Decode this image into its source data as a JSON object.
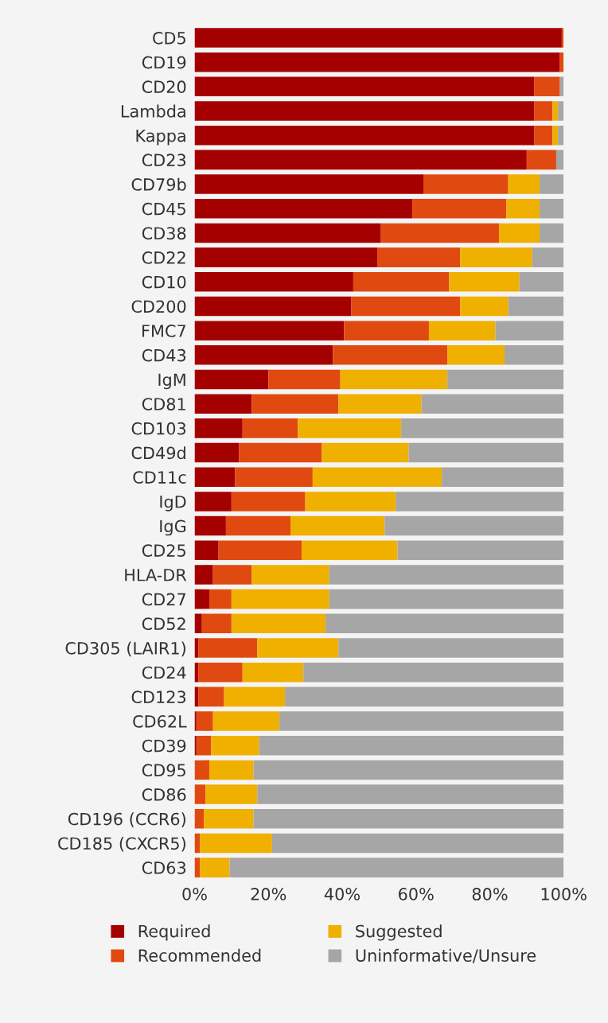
{
  "chart_data": {
    "type": "bar",
    "orientation": "horizontal",
    "stacked": true,
    "categories": [
      "CD5",
      "CD19",
      "CD20",
      "Lambda",
      "Kappa",
      "CD23",
      "CD79b",
      "CD45",
      "CD38",
      "CD22",
      "CD10",
      "CD200",
      "FMC7",
      "CD43",
      "IgM",
      "CD81",
      "CD103",
      "CD49d",
      "CD11c",
      "IgD",
      "IgG",
      "CD25",
      "HLA-DR",
      "CD27",
      "CD52",
      "CD305 (LAIR1)",
      "CD24",
      "CD123",
      "CD62L",
      "CD39",
      "CD95",
      "CD86",
      "CD196 (CCR6)",
      "CD185 (CXCR5)",
      "CD63"
    ],
    "series": [
      {
        "name": "Required",
        "color": "#a50000",
        "values": [
          99.5,
          99,
          92,
          92,
          92,
          90,
          62,
          59,
          50.5,
          49.5,
          43,
          42.5,
          40.5,
          37.5,
          20,
          15.5,
          13,
          12,
          11,
          10,
          8.5,
          6.5,
          5,
          4,
          2,
          1,
          1,
          1,
          0.5,
          0.5,
          0,
          0,
          0,
          0,
          0
        ]
      },
      {
        "name": "Recommended",
        "color": "#e04a10",
        "values": [
          0.5,
          1,
          7,
          5,
          5,
          8,
          23,
          25.5,
          32,
          22.5,
          26,
          29.5,
          23,
          31,
          19.5,
          23.5,
          15,
          22.5,
          21,
          20,
          17.5,
          22.5,
          10.5,
          6,
          8,
          16,
          12,
          7,
          4.5,
          4,
          4,
          3,
          2.5,
          1.5,
          1.5
        ]
      },
      {
        "name": "Suggested",
        "color": "#f0b000",
        "values": [
          0,
          0,
          0,
          1.5,
          1.5,
          0,
          8.5,
          9,
          11,
          19.5,
          19,
          13,
          18,
          15.5,
          29,
          22.5,
          28,
          23.5,
          35,
          24.5,
          25.5,
          26,
          21,
          26.5,
          25.5,
          22,
          16.5,
          16.5,
          18,
          13,
          12,
          14,
          13.5,
          19.5,
          8
        ]
      },
      {
        "name": "Uninformative/Unsure",
        "color": "#a6a6a6",
        "values": [
          0,
          0,
          1,
          1.5,
          1.5,
          2,
          6.5,
          6.5,
          6.5,
          8.5,
          12,
          15,
          18.5,
          16,
          31.5,
          38.5,
          44,
          42,
          33,
          45.5,
          48.5,
          45,
          63.5,
          63.5,
          64.5,
          61,
          70.5,
          75.5,
          77,
          82.5,
          84,
          83,
          84,
          79,
          90.5
        ]
      }
    ],
    "xlim": [
      0,
      100
    ],
    "xticks": [
      {
        "value": 0,
        "label": "0%"
      },
      {
        "value": 20,
        "label": "20%"
      },
      {
        "value": 40,
        "label": "40%"
      },
      {
        "value": 60,
        "label": "60%"
      },
      {
        "value": 80,
        "label": "80%"
      },
      {
        "value": 100,
        "label": "100%"
      }
    ],
    "legend": "bottom",
    "grid": false
  }
}
